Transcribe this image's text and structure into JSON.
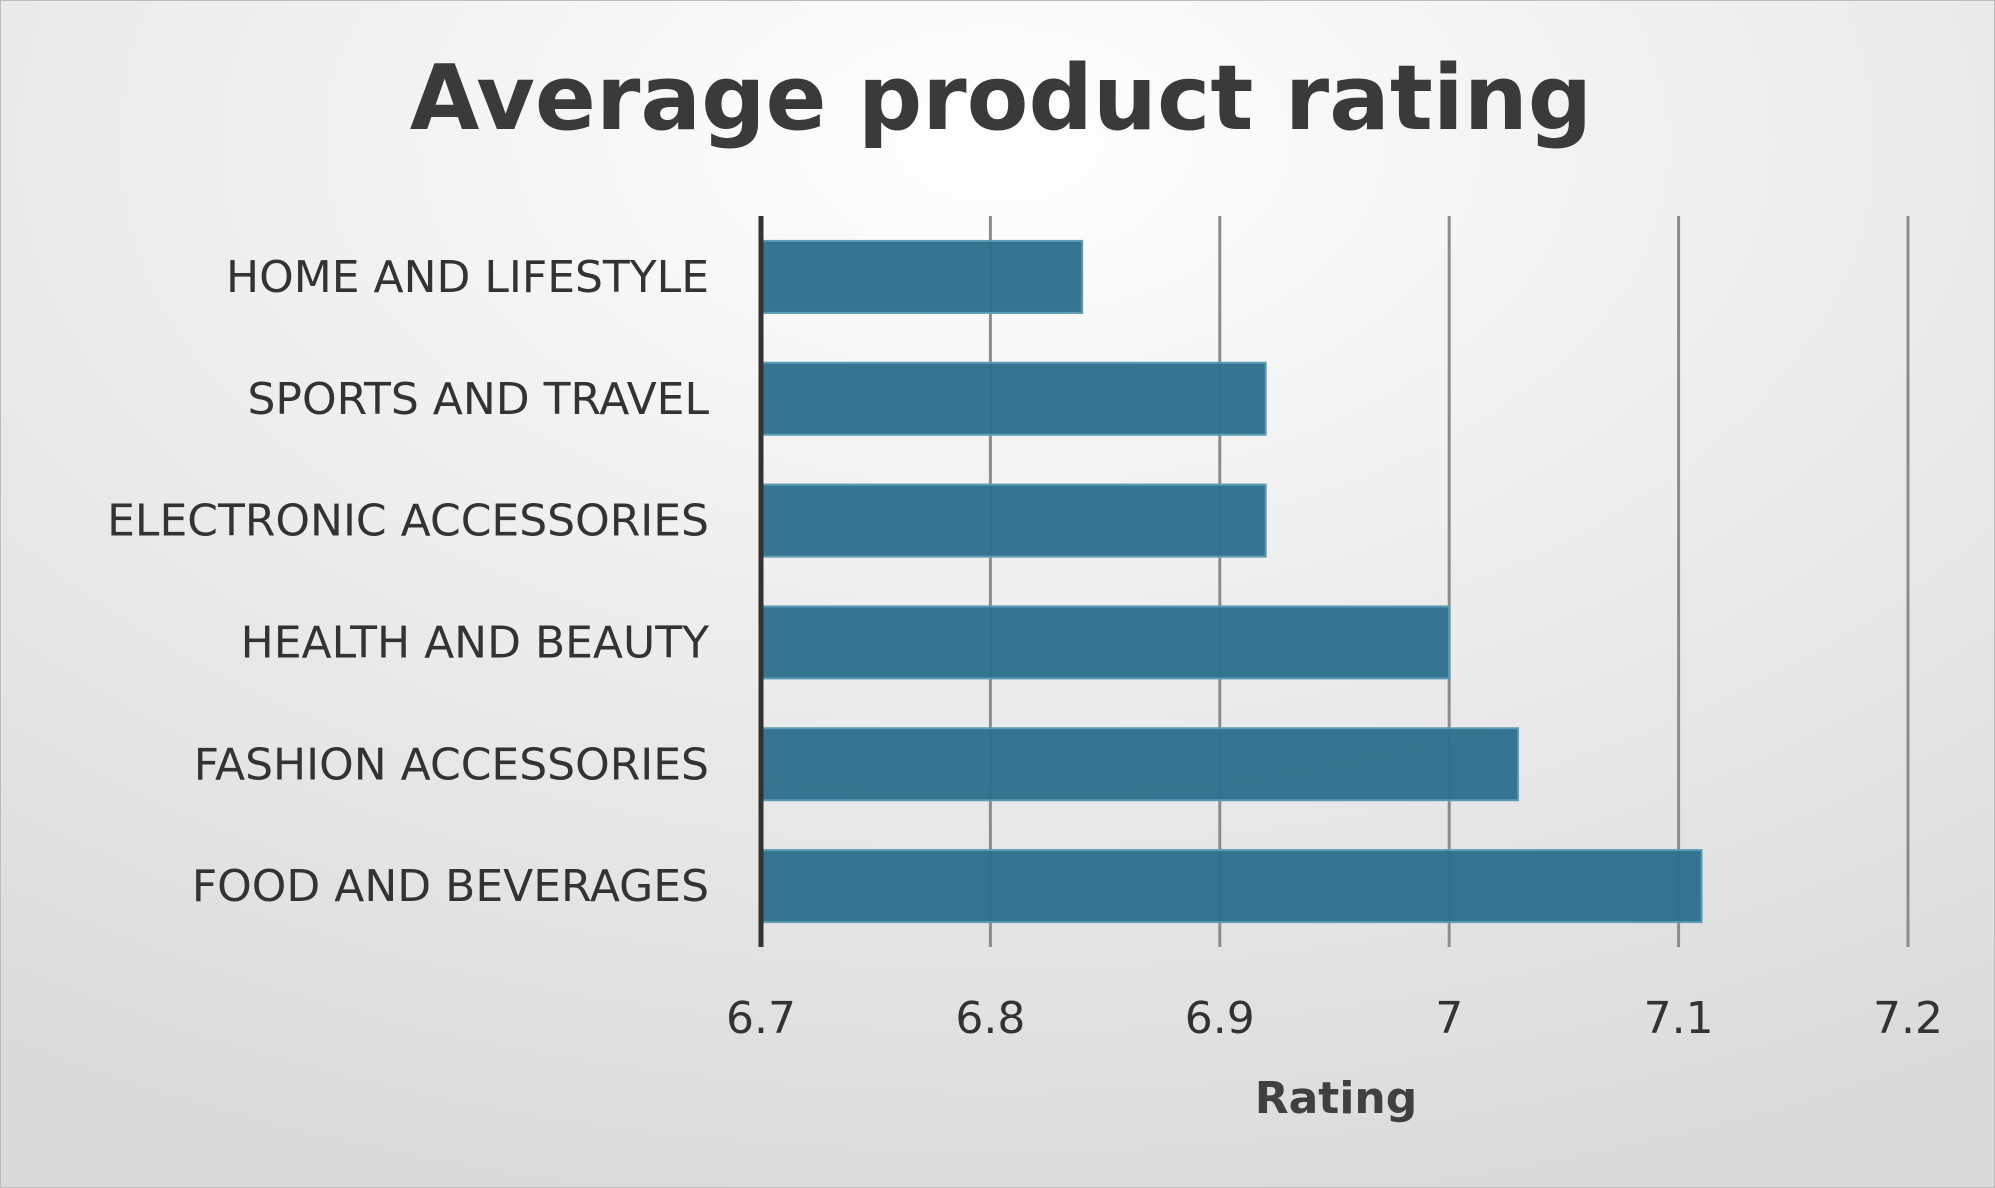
{
  "chart_data": {
    "type": "bar",
    "orientation": "horizontal",
    "title": "Average product rating",
    "xlabel": "Rating",
    "ylabel": "",
    "categories": [
      "HOME AND LIFESTYLE",
      "SPORTS AND TRAVEL",
      "ELECTRONIC ACCESSORIES",
      "HEALTH AND BEAUTY",
      "FASHION ACCESSORIES",
      "FOOD AND BEVERAGES"
    ],
    "values": [
      6.84,
      6.92,
      6.92,
      7.0,
      7.03,
      7.11
    ],
    "xlim": [
      6.7,
      7.2
    ],
    "xticks": [
      "6.7",
      "6.8",
      "6.9",
      "7",
      "7.1",
      "7.2"
    ],
    "grid": true,
    "legend": "none",
    "colors": {
      "bar": "#2e6f8c",
      "bar_border": "#5b9bb3",
      "gridline": "#8c8c8c",
      "axis_line": "#333333",
      "text": "#333333"
    }
  }
}
